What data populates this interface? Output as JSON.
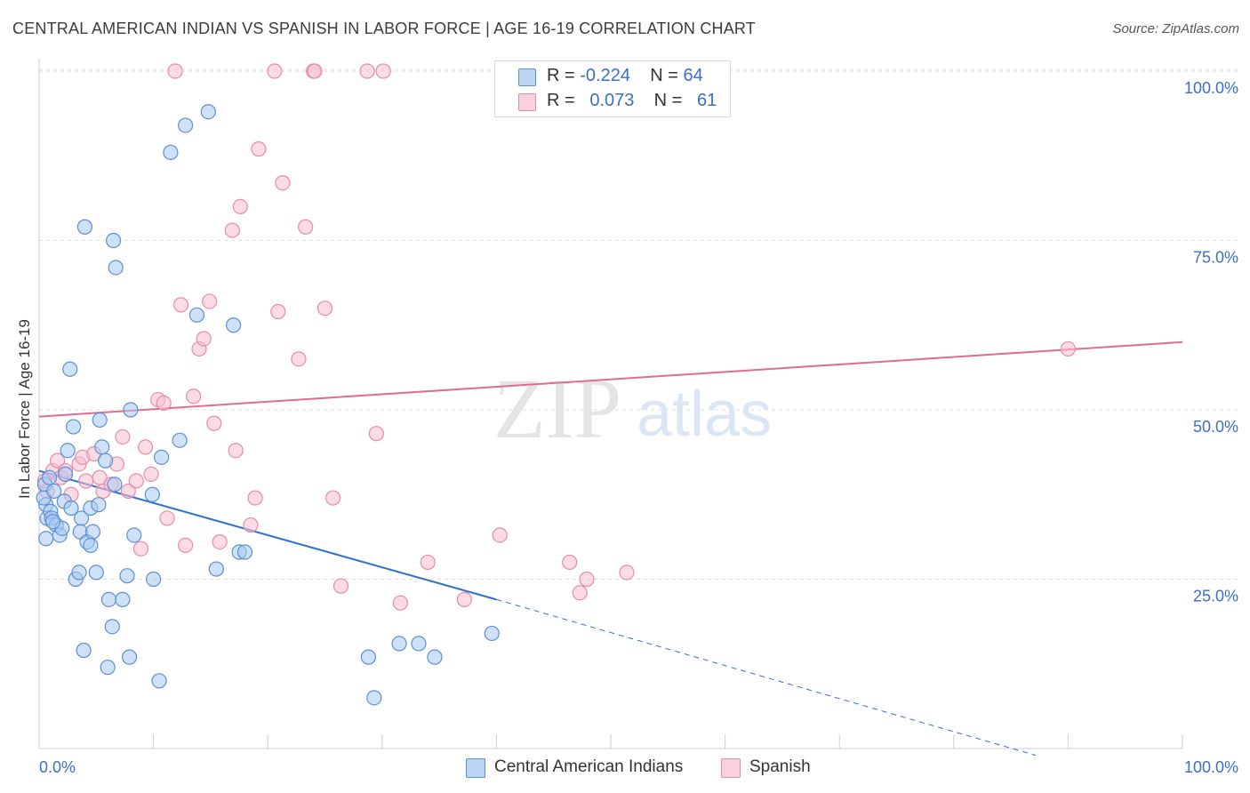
{
  "header": {
    "title": "CENTRAL AMERICAN INDIAN VS SPANISH IN LABOR FORCE | AGE 16-19 CORRELATION CHART",
    "source": "Source: ZipAtlas.com"
  },
  "watermark": {
    "zip": "ZIP",
    "atlas": "atlas"
  },
  "legend": {
    "rows": [
      {
        "r_label": "R =",
        "r_value": "-0.224",
        "n_label": "N =",
        "n_value": "64"
      },
      {
        "r_label": "R =",
        "r_value": "0.073",
        "n_label": "N =",
        "n_value": "61"
      }
    ]
  },
  "colors": {
    "blue_fill": "#a8c8f0",
    "blue_stroke": "#5b8fd6",
    "blue_line": "#2f72d0",
    "pink_fill": "#f7bfd0",
    "pink_stroke": "#e98aa9",
    "pink_line": "#e06c94",
    "axis_text": "#3b6fc6",
    "grid": "#dedede"
  },
  "chart_data": {
    "type": "scatter",
    "title": "CENTRAL AMERICAN INDIAN VS SPANISH IN LABOR FORCE | AGE 16-19 CORRELATION CHART",
    "xlabel": "",
    "ylabel": "In Labor Force | Age 16-19",
    "xlim": [
      0,
      100
    ],
    "ylim": [
      0,
      102
    ],
    "x_ticks": [
      "0.0%",
      "100.0%"
    ],
    "y_ticks": [
      {
        "value": 25,
        "label": "25.0%"
      },
      {
        "value": 50,
        "label": "50.0%"
      },
      {
        "value": 75,
        "label": "75.0%"
      },
      {
        "value": 100,
        "label": "100.0%"
      }
    ],
    "grid": true,
    "legend_position": "bottom",
    "series": [
      {
        "name": "Central American Indians",
        "color": "#5b8fd6",
        "r": -0.224,
        "n": 64,
        "trend": {
          "x0": 0,
          "y0": 41,
          "x1": 40,
          "y1": 22,
          "dash_to_x": 100,
          "dash_to_y": -1
        },
        "points": [
          [
            0.5,
            39
          ],
          [
            0.6,
            36
          ],
          [
            0.7,
            34
          ],
          [
            0.6,
            31
          ],
          [
            0.4,
            37
          ],
          [
            0.9,
            40
          ],
          [
            1.0,
            35
          ],
          [
            1.1,
            34
          ],
          [
            1.3,
            38
          ],
          [
            1.5,
            33
          ],
          [
            1.8,
            31.5
          ],
          [
            2.0,
            32.5
          ],
          [
            2.2,
            36.5
          ],
          [
            2.5,
            44
          ],
          [
            2.8,
            35.5
          ],
          [
            3.0,
            47.5
          ],
          [
            2.7,
            56
          ],
          [
            3.2,
            25
          ],
          [
            3.5,
            26
          ],
          [
            3.7,
            34
          ],
          [
            3.6,
            32
          ],
          [
            3.9,
            14.5
          ],
          [
            4.2,
            30.5
          ],
          [
            4.5,
            35.5
          ],
          [
            4.7,
            32
          ],
          [
            5.0,
            26
          ],
          [
            5.2,
            36
          ],
          [
            5.5,
            44.5
          ],
          [
            5.3,
            48.5
          ],
          [
            5.8,
            42.5
          ],
          [
            6.1,
            22
          ],
          [
            6.4,
            18
          ],
          [
            6.6,
            39
          ],
          [
            7.3,
            22
          ],
          [
            7.7,
            25.5
          ],
          [
            7.9,
            13.5
          ],
          [
            8.3,
            31.5
          ],
          [
            8.0,
            50
          ],
          [
            9.9,
            37.5
          ],
          [
            10.0,
            25
          ],
          [
            10.5,
            10
          ],
          [
            10.7,
            43
          ],
          [
            11.5,
            88
          ],
          [
            12.3,
            45.5
          ],
          [
            12.8,
            92
          ],
          [
            13.8,
            64
          ],
          [
            14.8,
            94
          ],
          [
            15.5,
            26.5
          ],
          [
            17.0,
            62.5
          ],
          [
            17.5,
            29
          ],
          [
            18.0,
            29
          ],
          [
            6.0,
            12
          ],
          [
            4.0,
            77
          ],
          [
            6.5,
            75
          ],
          [
            6.7,
            71
          ],
          [
            1.2,
            33.5
          ],
          [
            2.3,
            40.5
          ],
          [
            4.5,
            30
          ],
          [
            28.8,
            13.5
          ],
          [
            29.3,
            7.5
          ],
          [
            31.5,
            15.5
          ],
          [
            33.2,
            15.5
          ],
          [
            34.6,
            13.5
          ],
          [
            39.6,
            17
          ]
        ]
      },
      {
        "name": "Spanish",
        "color": "#e98aa9",
        "r": 0.073,
        "n": 61,
        "trend": {
          "x0": 0,
          "y0": 49,
          "x1": 100,
          "y1": 60
        },
        "points": [
          [
            0.5,
            39.5
          ],
          [
            0.7,
            38
          ],
          [
            1.2,
            41
          ],
          [
            1.6,
            42.5
          ],
          [
            1.9,
            40
          ],
          [
            2.3,
            41
          ],
          [
            2.8,
            37.5
          ],
          [
            3.5,
            42
          ],
          [
            3.8,
            43
          ],
          [
            4.1,
            39.5
          ],
          [
            4.8,
            43.5
          ],
          [
            5.3,
            40
          ],
          [
            5.6,
            38
          ],
          [
            6.3,
            39
          ],
          [
            6.8,
            42
          ],
          [
            7.3,
            46
          ],
          [
            7.8,
            38
          ],
          [
            8.5,
            39.5
          ],
          [
            8.9,
            29.5
          ],
          [
            9.3,
            44.5
          ],
          [
            9.8,
            40.5
          ],
          [
            10.4,
            51.5
          ],
          [
            10.9,
            51
          ],
          [
            11.2,
            34
          ],
          [
            11.9,
            100
          ],
          [
            12.4,
            65.5
          ],
          [
            12.8,
            30
          ],
          [
            13.5,
            52
          ],
          [
            14.0,
            59
          ],
          [
            14.4,
            60.5
          ],
          [
            14.9,
            66
          ],
          [
            15.3,
            48
          ],
          [
            15.8,
            30.5
          ],
          [
            16.9,
            76.5
          ],
          [
            17.2,
            44
          ],
          [
            17.6,
            80
          ],
          [
            18.5,
            33
          ],
          [
            18.9,
            37
          ],
          [
            19.2,
            88.5
          ],
          [
            20.6,
            100
          ],
          [
            20.9,
            64.5
          ],
          [
            21.3,
            83.5
          ],
          [
            22.7,
            57.5
          ],
          [
            23.3,
            77
          ],
          [
            24.0,
            100
          ],
          [
            24.1,
            100
          ],
          [
            25.0,
            65
          ],
          [
            25.7,
            37
          ],
          [
            26.4,
            24
          ],
          [
            28.7,
            100
          ],
          [
            29.5,
            46.5
          ],
          [
            30.1,
            100
          ],
          [
            31.6,
            21.5
          ],
          [
            34.0,
            27.5
          ],
          [
            37.2,
            22
          ],
          [
            40.3,
            31.5
          ],
          [
            46.4,
            27.5
          ],
          [
            47.3,
            23
          ],
          [
            47.9,
            25
          ],
          [
            51.4,
            26
          ],
          [
            90.0,
            59
          ]
        ]
      }
    ]
  }
}
